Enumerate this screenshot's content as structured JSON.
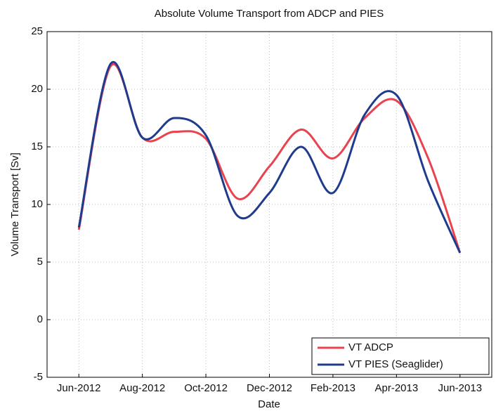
{
  "chart_data": {
    "type": "line",
    "title": "Absolute Volume Transport from ADCP and PIES",
    "xlabel": "Date",
    "ylabel": "Volume Transport [Sv]",
    "x": [
      "2012-06",
      "2012-07",
      "2012-08",
      "2012-09",
      "2012-10",
      "2012-11",
      "2012-12",
      "2013-01",
      "2013-02",
      "2013-03",
      "2013-04",
      "2013-05",
      "2013-06"
    ],
    "series": [
      {
        "name": "VT ADCP",
        "color": "#e8434f",
        "values": [
          7.8,
          22,
          15.8,
          16.3,
          15.7,
          10.5,
          13.3,
          16.5,
          14,
          17.5,
          19,
          14,
          5.8
        ]
      },
      {
        "name": "VT PIES (Seaglider)",
        "color": "#1f3b8c",
        "values": [
          8,
          22.2,
          15.8,
          17.5,
          16,
          9,
          11,
          15,
          11,
          17.8,
          19.5,
          12,
          5.8
        ]
      }
    ],
    "xlim": [
      "2012-05",
      "2013-07"
    ],
    "xticks": [
      {
        "value": "2012-06",
        "label": "Jun-2012"
      },
      {
        "value": "2012-08",
        "label": "Aug-2012"
      },
      {
        "value": "2012-10",
        "label": "Oct-2012"
      },
      {
        "value": "2012-12",
        "label": "Dec-2012"
      },
      {
        "value": "2013-02",
        "label": "Feb-2013"
      },
      {
        "value": "2013-04",
        "label": "Apr-2013"
      },
      {
        "value": "2013-06",
        "label": "Jun-2013"
      }
    ],
    "ylim": [
      -5,
      25
    ],
    "yticks": [
      -5,
      0,
      5,
      10,
      15,
      20,
      25
    ],
    "grid": true,
    "legend": "lower right"
  }
}
